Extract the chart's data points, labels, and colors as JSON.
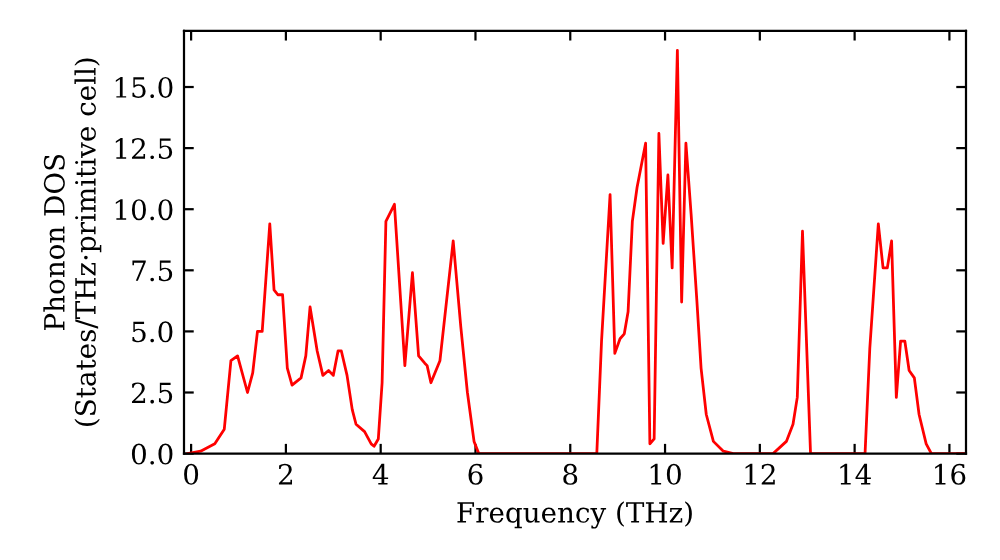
{
  "chart_data": {
    "type": "line",
    "xlabel": "Frequency (THz)",
    "ylabel": "Phonon DOS\n(States/THz·primitive cell)",
    "xlim": [
      -0.15,
      16.35
    ],
    "ylim": [
      0,
      17.3
    ],
    "xticks": [
      0,
      2,
      4,
      6,
      8,
      10,
      12,
      14,
      16
    ],
    "yticks": [
      {
        "value": 0,
        "label": "0.0"
      },
      {
        "value": 2.5,
        "label": "2.5"
      },
      {
        "value": 5,
        "label": "5.0"
      },
      {
        "value": 7.5,
        "label": "7.5"
      },
      {
        "value": 10,
        "label": "10.0"
      },
      {
        "value": 12.5,
        "label": "12.5"
      },
      {
        "value": 15,
        "label": "15.0"
      }
    ],
    "grid": false,
    "marker": "none",
    "line_style": "solid",
    "series": [
      {
        "color": "#ff0000",
        "x": [
          -0.07,
          0.2,
          0.5,
          0.7,
          0.84,
          0.98,
          1.19,
          1.3,
          1.4,
          1.5,
          1.66,
          1.75,
          1.83,
          1.93,
          2.03,
          2.13,
          2.32,
          2.42,
          2.51,
          2.66,
          2.78,
          2.9,
          3.0,
          3.1,
          3.17,
          3.29,
          3.4,
          3.48,
          3.66,
          3.8,
          3.86,
          3.95,
          4.03,
          4.11,
          4.29,
          4.51,
          4.67,
          4.8,
          4.93,
          4.98,
          5.06,
          5.25,
          5.53,
          5.69,
          5.83,
          5.97,
          6.07,
          8.56,
          8.66,
          8.84,
          8.94,
          9.05,
          9.14,
          9.22,
          9.31,
          9.41,
          9.59,
          9.68,
          9.77,
          9.87,
          9.96,
          10.06,
          10.15,
          10.26,
          10.35,
          10.44,
          10.55,
          10.67,
          10.76,
          10.87,
          11.02,
          11.23,
          11.44,
          12.28,
          12.56,
          12.7,
          12.79,
          12.9,
          13.07,
          14.22,
          14.32,
          14.5,
          14.6,
          14.69,
          14.78,
          14.88,
          14.97,
          15.06,
          15.15,
          15.26,
          15.36,
          15.51,
          15.62,
          16.35
        ],
        "values": [
          0,
          0.1,
          0.4,
          1.0,
          3.8,
          4.0,
          2.5,
          3.3,
          5.0,
          5.0,
          9.4,
          6.7,
          6.5,
          6.5,
          3.5,
          2.8,
          3.1,
          4.0,
          6.0,
          4.2,
          3.2,
          3.4,
          3.2,
          4.2,
          4.2,
          3.2,
          1.8,
          1.2,
          0.9,
          0.4,
          0.3,
          0.6,
          2.9,
          9.5,
          10.2,
          3.6,
          7.4,
          4.0,
          3.7,
          3.6,
          2.9,
          3.8,
          8.7,
          5.2,
          2.5,
          0.5,
          0,
          0,
          4.6,
          10.6,
          4.1,
          4.7,
          4.9,
          5.8,
          9.5,
          10.9,
          12.7,
          0.4,
          0.6,
          13.1,
          8.6,
          11.4,
          7.6,
          16.5,
          6.2,
          12.7,
          9.8,
          6.3,
          3.5,
          1.6,
          0.5,
          0.1,
          0,
          0,
          0.5,
          1.2,
          2.3,
          9.1,
          0,
          0,
          4.3,
          9.4,
          7.6,
          7.6,
          8.7,
          2.3,
          4.6,
          4.6,
          3.4,
          3.1,
          1.6,
          0.4,
          0,
          0
        ]
      }
    ]
  }
}
